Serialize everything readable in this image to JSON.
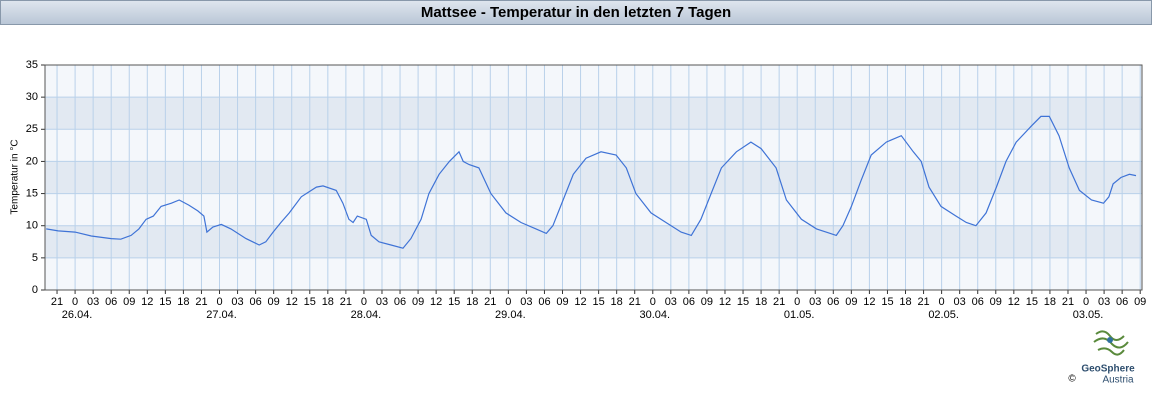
{
  "chart_data": {
    "type": "line",
    "title": "Mattsee - Temperatur in den letzten 7 Tagen",
    "ylabel": "Temperatur in °C",
    "x": [
      -4.8,
      -2.8,
      0,
      2.7,
      6.0,
      7.6,
      9.3,
      10.6,
      11.8,
      13.0,
      14.3,
      16.0,
      17.3,
      18.9,
      20.4,
      21.4,
      21.9,
      22.9,
      24.3,
      25.9,
      28.4,
      30.6,
      31.7,
      32.9,
      34.2,
      35.6,
      37.6,
      40.1,
      41.2,
      43.4,
      44.5,
      45.5,
      46.2,
      46.9,
      48.4,
      49.2,
      50.5,
      52.5,
      54.5,
      55.8,
      57.5,
      58.8,
      60.5,
      62.2,
      63.8,
      64.5,
      65.5,
      67.1,
      69.1,
      71.6,
      74.1,
      76.6,
      78.3,
      79.4,
      81.1,
      82.8,
      84.9,
      87.4,
      89.9,
      91.6,
      93.2,
      95.7,
      98.2,
      100.7,
      102.4,
      104.0,
      105.7,
      107.4,
      109.9,
      112.3,
      114.0,
      116.5,
      118.2,
      120.7,
      123.2,
      124.8,
      126.5,
      127.6,
      129.0,
      130.6,
      132.3,
      134.8,
      137.3,
      139.3,
      140.6,
      141.9,
      143.9,
      146.4,
      148.1,
      149.7,
      151.4,
      153.1,
      154.7,
      156.4,
      158.9,
      160.5,
      161.9,
      163.5,
      165.2,
      166.9,
      168.9,
      170.9,
      171.8,
      172.5,
      173.8,
      175.2,
      176.3
    ],
    "series": [
      {
        "name": "Temperatur",
        "color": "#3f73d6",
        "values": [
          9.5,
          9.2,
          9.0,
          8.4,
          8.0,
          7.9,
          8.5,
          9.5,
          11.0,
          11.5,
          13.0,
          13.5,
          14.0,
          13.2,
          12.3,
          11.5,
          9.0,
          9.8,
          10.2,
          9.5,
          8.0,
          7.0,
          7.5,
          9.0,
          10.5,
          12.0,
          14.5,
          16.0,
          16.2,
          15.5,
          13.5,
          11.0,
          10.5,
          11.5,
          11.0,
          8.5,
          7.5,
          7.0,
          6.5,
          8.0,
          11.0,
          15.0,
          18.0,
          20.0,
          21.5,
          20.0,
          19.5,
          19.0,
          15.0,
          12.0,
          10.5,
          9.5,
          8.8,
          10.0,
          14.0,
          18.0,
          20.5,
          21.5,
          21.0,
          19.0,
          15.0,
          12.0,
          10.5,
          9.0,
          8.5,
          11.0,
          15.0,
          19.0,
          21.5,
          23.0,
          22.0,
          19.0,
          14.0,
          11.0,
          9.5,
          9.0,
          8.5,
          10.0,
          13.0,
          17.0,
          21.0,
          23.0,
          24.0,
          21.5,
          20.0,
          16.0,
          13.0,
          11.5,
          10.5,
          10.0,
          12.0,
          16.0,
          20.0,
          23.0,
          25.5,
          27.0,
          27.0,
          24.0,
          19.0,
          15.5,
          14.0,
          13.5,
          14.5,
          16.5,
          17.5,
          18.0,
          17.8
        ]
      }
    ],
    "xlim": [
      -5,
      177.3
    ],
    "xticks": [
      {
        "value": -3,
        "label": "21"
      },
      0,
      {
        "value": 3,
        "label": "03"
      },
      {
        "value": 6,
        "label": "06"
      },
      {
        "value": 9,
        "label": "09"
      },
      {
        "value": 12,
        "label": "12"
      },
      {
        "value": 15,
        "label": "15"
      },
      {
        "value": 18,
        "label": "18"
      },
      {
        "value": 21,
        "label": "21"
      },
      {
        "value": 24,
        "label": "0"
      },
      {
        "value": 27,
        "label": "03"
      },
      {
        "value": 30,
        "label": "06"
      },
      {
        "value": 33,
        "label": "09"
      },
      {
        "value": 36,
        "label": "12"
      },
      {
        "value": 39,
        "label": "15"
      },
      {
        "value": 42,
        "label": "18"
      },
      {
        "value": 45,
        "label": "21"
      },
      {
        "value": 48,
        "label": "0"
      },
      {
        "value": 51,
        "label": "03"
      },
      {
        "value": 54,
        "label": "06"
      },
      {
        "value": 57,
        "label": "09"
      },
      {
        "value": 60,
        "label": "12"
      },
      {
        "value": 63,
        "label": "15"
      },
      {
        "value": 66,
        "label": "18"
      },
      {
        "value": 69,
        "label": "21"
      },
      {
        "value": 72,
        "label": "0"
      },
      {
        "value": 75,
        "label": "03"
      },
      {
        "value": 78,
        "label": "06"
      },
      {
        "value": 81,
        "label": "09"
      },
      {
        "value": 84,
        "label": "12"
      },
      {
        "value": 87,
        "label": "15"
      },
      {
        "value": 90,
        "label": "18"
      },
      {
        "value": 93,
        "label": "21"
      },
      {
        "value": 96,
        "label": "0"
      },
      {
        "value": 99,
        "label": "03"
      },
      {
        "value": 102,
        "label": "06"
      },
      {
        "value": 105,
        "label": "09"
      },
      {
        "value": 108,
        "label": "12"
      },
      {
        "value": 111,
        "label": "15"
      },
      {
        "value": 114,
        "label": "18"
      },
      {
        "value": 117,
        "label": "21"
      },
      {
        "value": 120,
        "label": "0"
      },
      {
        "value": 123,
        "label": "03"
      },
      {
        "value": 126,
        "label": "06"
      },
      {
        "value": 129,
        "label": "09"
      },
      {
        "value": 132,
        "label": "12"
      },
      {
        "value": 135,
        "label": "15"
      },
      {
        "value": 138,
        "label": "18"
      },
      {
        "value": 141,
        "label": "21"
      },
      {
        "value": 144,
        "label": "0"
      },
      {
        "value": 147,
        "label": "03"
      },
      {
        "value": 150,
        "label": "06"
      },
      {
        "value": 153,
        "label": "09"
      },
      {
        "value": 156,
        "label": "12"
      },
      {
        "value": 159,
        "label": "15"
      },
      {
        "value": 162,
        "label": "18"
      },
      {
        "value": 165,
        "label": "21"
      },
      {
        "value": 168,
        "label": "0"
      },
      {
        "value": 171,
        "label": "03"
      },
      {
        "value": 174,
        "label": "06"
      },
      {
        "value": 177,
        "label": "09"
      }
    ],
    "date_ticks": [
      {
        "value": 0,
        "label": "26.04."
      },
      {
        "value": 24,
        "label": "27.04."
      },
      {
        "value": 48,
        "label": "28.04."
      },
      {
        "value": 72,
        "label": "29.04."
      },
      {
        "value": 96,
        "label": "30.04."
      },
      {
        "value": 120,
        "label": "01.05."
      },
      {
        "value": 144,
        "label": "02.05."
      },
      {
        "value": 168,
        "label": "03.05."
      }
    ],
    "ylim": [
      0,
      35
    ],
    "yticks": [
      0,
      5,
      10,
      15,
      20,
      25,
      30,
      35
    ],
    "grid": true
  },
  "logo": {
    "name": "GeoSphere",
    "subtitle": "Austria",
    "copyright": "©"
  }
}
